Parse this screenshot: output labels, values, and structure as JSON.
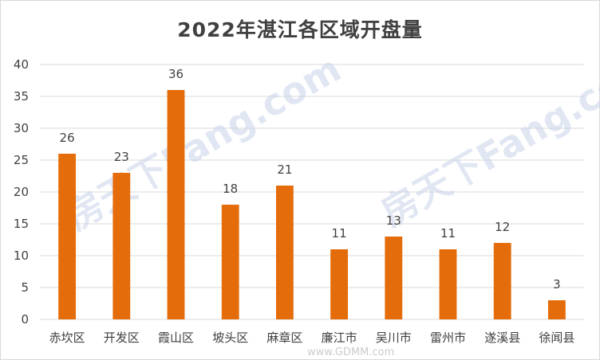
{
  "chart_data": {
    "type": "bar",
    "title": "2022年湛江各区域开盘量",
    "categories": [
      "赤坎区",
      "开发区",
      "霞山区",
      "坡头区",
      "麻章区",
      "廉江市",
      "吴川市",
      "雷州市",
      "遂溪县",
      "徐闻县"
    ],
    "values": [
      26,
      23,
      36,
      18,
      21,
      11,
      13,
      11,
      12,
      3
    ],
    "ylim": [
      0,
      40
    ],
    "yticks": [
      0,
      5,
      10,
      15,
      20,
      25,
      30,
      35,
      40
    ],
    "grid": true,
    "data_labels": true,
    "bar_color": "#E46C0A"
  },
  "watermarks": {
    "main_1": "房天下Fang.com",
    "main_2": "房天下Fang.com",
    "bottom": "www.GDMM.com"
  }
}
